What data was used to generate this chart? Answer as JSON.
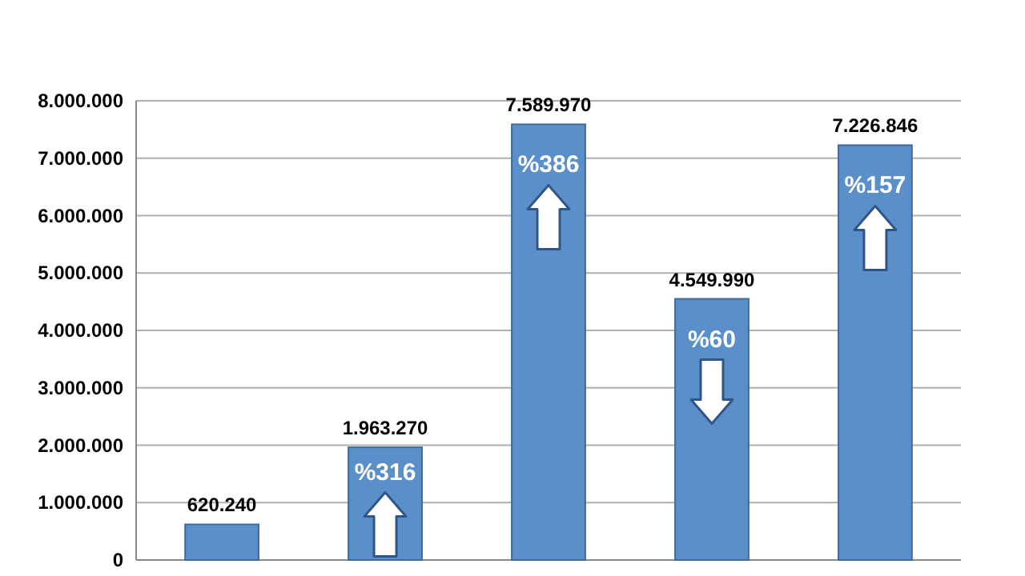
{
  "chart_data": {
    "type": "bar",
    "categories": [
      null,
      null,
      null,
      null,
      null
    ],
    "values": [
      620240,
      1963270,
      7589970,
      4549990,
      7226846
    ],
    "color": "#5b8fc9",
    "value_labels": [
      "620.240",
      "1.963.270",
      "7.589.970",
      "4.549.990",
      "7.226.846"
    ],
    "ylim": [
      0,
      8000000
    ],
    "yticks": [
      0,
      {
        "value": 1000000,
        "label": "1.000.000"
      },
      {
        "value": 2000000,
        "label": "2.000.000"
      },
      {
        "value": 3000000,
        "label": "3.000.000"
      },
      {
        "value": 4000000,
        "label": "4.000.000"
      },
      {
        "value": 5000000,
        "label": "5.000.000"
      },
      {
        "value": 6000000,
        "label": "6.000.000"
      },
      {
        "value": 7000000,
        "label": "7.000.000"
      },
      {
        "value": 8000000,
        "label": "8.000.000"
      }
    ],
    "grid": "y",
    "annotations": [
      "%316",
      "%386",
      "%60",
      "%157"
    ]
  }
}
